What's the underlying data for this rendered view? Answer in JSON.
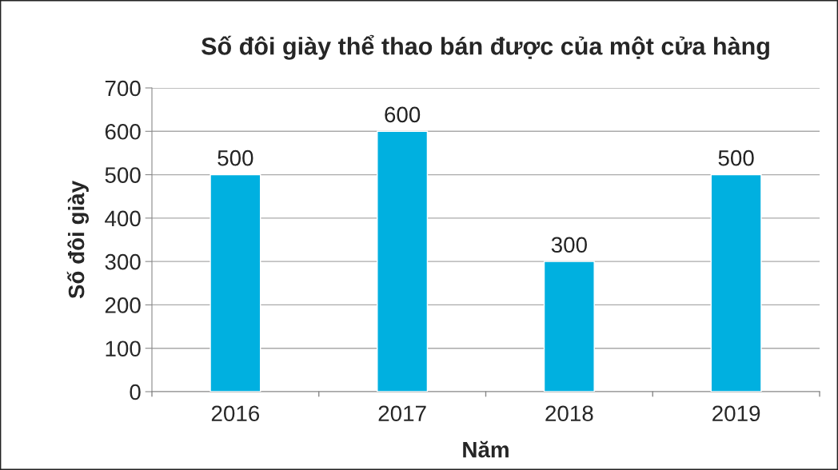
{
  "chart_data": {
    "type": "bar",
    "title": "Số đôi giày thể thao bán được của một cửa hàng",
    "xlabel": "Năm",
    "ylabel": "Số đôi giày",
    "categories": [
      "2016",
      "2017",
      "2018",
      "2019"
    ],
    "values": [
      500,
      600,
      300,
      500
    ],
    "color": "#00b0e0",
    "ylim": [
      0,
      700
    ],
    "yticks": [
      0,
      100,
      200,
      300,
      400,
      500,
      600,
      700
    ],
    "grid": "y",
    "data_labels": true,
    "legend": false
  }
}
